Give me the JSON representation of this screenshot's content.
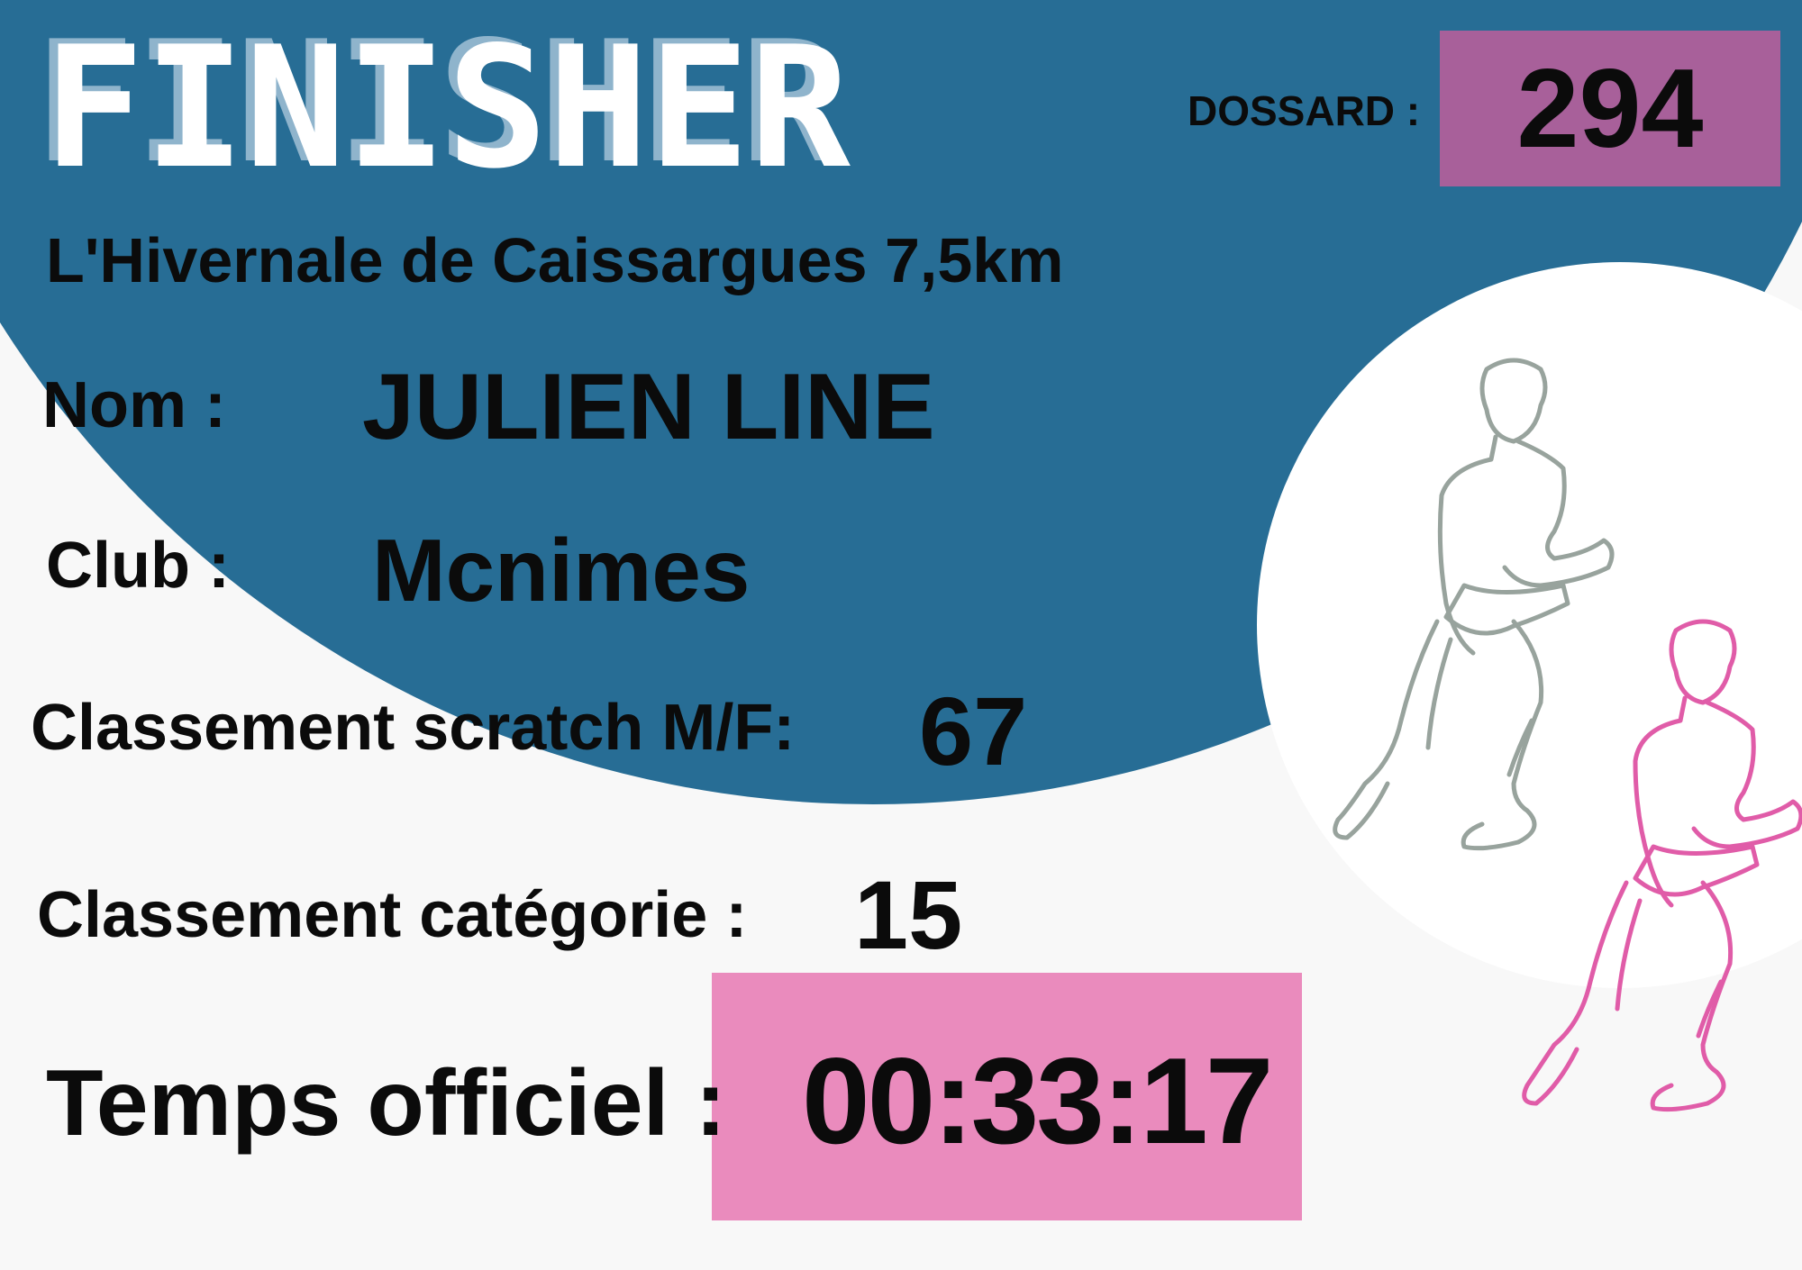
{
  "title": "FINISHER",
  "dossard": {
    "label": "DOSSARD :",
    "value": "294"
  },
  "event": "L'Hivernale de Caissargues 7,5km",
  "nom": {
    "label": "Nom :",
    "value": "JULIEN LINE"
  },
  "club": {
    "label": "Club :",
    "value": "Mcnimes"
  },
  "scratch": {
    "label": "Classement scratch M/F:",
    "value": "67"
  },
  "categorie": {
    "label": "Classement catégorie :",
    "value": "15"
  },
  "temps": {
    "label": "Temps officiel :",
    "value": "00:33:17"
  },
  "colors": {
    "background": "#f8f8f8",
    "blue": "#276d95",
    "dossard_box": "#a8609a",
    "time_box": "#ea8bbd",
    "runner_gray": "#98a39d",
    "runner_pink": "#e05ca8"
  },
  "illustrations": [
    "runner-gray",
    "runner-pink"
  ]
}
